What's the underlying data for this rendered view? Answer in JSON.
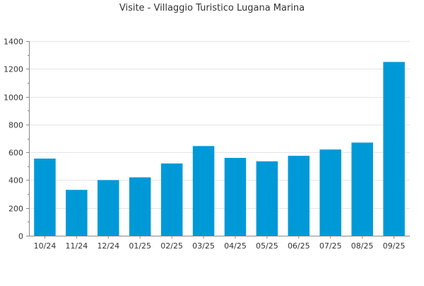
{
  "chart_data": {
    "type": "bar",
    "title": "Visite - Villaggio Turistico Lugana Marina",
    "xlabel": "",
    "ylabel": "",
    "categories": [
      "10/24",
      "11/24",
      "12/24",
      "01/25",
      "02/25",
      "03/25",
      "04/25",
      "05/25",
      "06/25",
      "07/25",
      "08/25",
      "09/25"
    ],
    "values": [
      555,
      330,
      400,
      420,
      520,
      645,
      560,
      535,
      575,
      620,
      670,
      1250
    ],
    "ylim": [
      0,
      1400
    ],
    "yticks": [
      0,
      200,
      400,
      600,
      800,
      1000,
      1200,
      1400
    ],
    "grid": true,
    "legend": "none",
    "colors": {
      "bar": "#0099d8",
      "grid": "#e4e4e4",
      "axis": "#888888",
      "tick_text": "#333333"
    }
  }
}
